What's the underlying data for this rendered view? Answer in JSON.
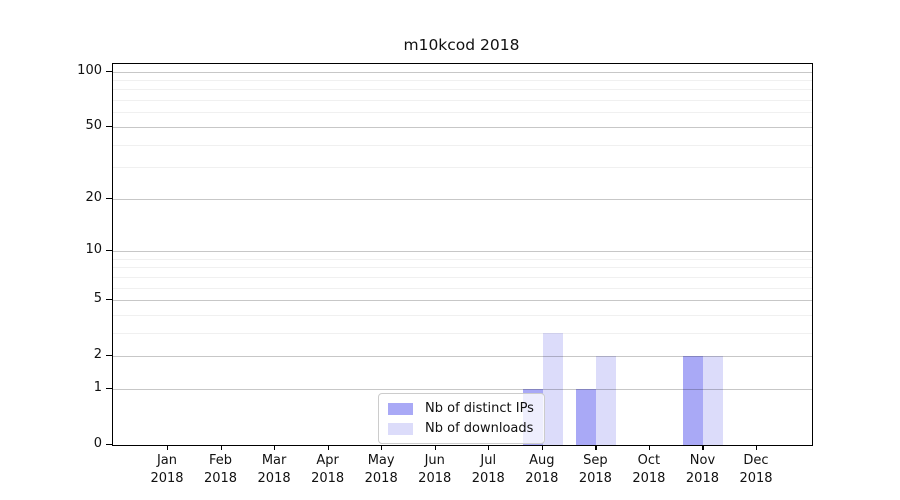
{
  "figure": {
    "background": "#ffffff"
  },
  "chart_data": {
    "type": "bar",
    "title": "m10kcod 2018",
    "categories": [
      "Jan",
      "Feb",
      "Mar",
      "Apr",
      "May",
      "Jun",
      "Jul",
      "Aug",
      "Sep",
      "Oct",
      "Nov",
      "Dec"
    ],
    "x_tick_second_line": "2018",
    "series": [
      {
        "name": "Nb of distinct IPs",
        "color": "#a9a9f6",
        "values": [
          0,
          0,
          0,
          0,
          0,
          0,
          0,
          1,
          1,
          0,
          2,
          0
        ]
      },
      {
        "name": "Nb of downloads",
        "color": "#dcdcfa",
        "values": [
          0,
          0,
          0,
          0,
          0,
          0,
          0,
          3,
          2,
          0,
          2,
          0
        ]
      }
    ],
    "xlabel": "",
    "ylabel": "",
    "y_axis": {
      "scale": "log10(1+x)",
      "ticks": [
        0,
        1,
        2,
        5,
        10,
        20,
        50,
        100
      ],
      "tick_labels": [
        "0",
        "1",
        "2",
        "5",
        "10",
        "20",
        "50",
        "100"
      ],
      "minor_gridlines": [
        3,
        4,
        6,
        7,
        8,
        9,
        30,
        40,
        60,
        70,
        80,
        90
      ],
      "max": 110
    },
    "ylim": [
      0,
      110
    ],
    "grid": "horizontal, major and minor",
    "legend_position": "inside bottom-center"
  },
  "colors": {
    "grid_major": "rgba(0,0,0,0.22)",
    "grid_minor": "rgba(0,0,0,0.06)",
    "axis": "#000000",
    "legend_border": "#cccccc",
    "legend_background": "rgba(255,255,255,0.8)"
  }
}
